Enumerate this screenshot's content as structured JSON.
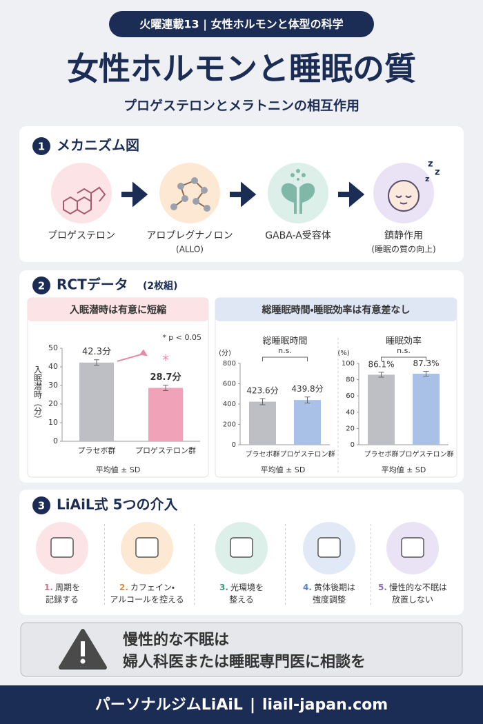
{
  "header": {
    "badge": "火曜連載13 | 女性ホルモンと体型の科学",
    "title": "女性ホルモンと睡眠の質",
    "subtitle": "プロゲステロンとメラトニンの相互作用"
  },
  "mechanism": {
    "number": "1",
    "title": "メカニズム図",
    "steps": [
      {
        "label": "プロゲステロン"
      },
      {
        "label": "アロプレグナノロン",
        "sub": "(ALLO)"
      },
      {
        "label": "GABA-A受容体"
      },
      {
        "label": "鎮静作用",
        "sub": "(睡眠の質の向上)"
      }
    ]
  },
  "rct": {
    "number": "2",
    "title": "RCTデータ",
    "note": "(2枚組)",
    "left_heading": "入眠潜時は有意に短縮",
    "right_heading": "総睡眠時間・睡眠効率は有意差なし"
  },
  "chart_data": [
    {
      "type": "bar",
      "y_label": "入眠潜時（分）",
      "categories": [
        "プラセボ群",
        "プロゲステロン群"
      ],
      "values": [
        42.3,
        28.7
      ],
      "value_labels": [
        "42.3分",
        "28.7分"
      ],
      "errors": [
        1.5,
        1.5
      ],
      "colors": [
        "#bdbfc4",
        "#f0a3b8"
      ],
      "ylim": [
        0,
        50
      ],
      "yticks": [
        0,
        10,
        20,
        30,
        40,
        50
      ],
      "significance": "*",
      "annotation": "* p < 0.05",
      "footnote": "平均値 ± SD"
    },
    {
      "type": "bar",
      "title": "総睡眠時間",
      "unit": "(分)",
      "categories": [
        "プラセボ群",
        "プロゲステロン群"
      ],
      "values": [
        423.6,
        439.8
      ],
      "value_labels": [
        "423.6分",
        "439.8分"
      ],
      "errors": [
        30,
        30
      ],
      "colors": [
        "#bdbfc4",
        "#a9c1e6"
      ],
      "ylim": [
        0,
        800
      ],
      "yticks": [
        0,
        200,
        400,
        600,
        800
      ],
      "significance": "n.s.",
      "footnote": "平均値 ± SD"
    },
    {
      "type": "bar",
      "title": "睡眠効率",
      "unit": "(%)",
      "categories": [
        "プラセボ群",
        "プロゲステロン群"
      ],
      "values": [
        86.1,
        87.3
      ],
      "value_labels": [
        "86.1%",
        "87.3%"
      ],
      "errors": [
        3,
        3
      ],
      "colors": [
        "#bdbfc4",
        "#a9c1e6"
      ],
      "ylim": [
        0,
        100
      ],
      "yticks": [
        0,
        20,
        40,
        60,
        80,
        100
      ],
      "significance": "n.s.",
      "footnote": "平均値 ± SD"
    }
  ],
  "interventions": {
    "number": "3",
    "title": "LiAiL式 5つの介入",
    "items": [
      {
        "num": "1.",
        "lines": [
          "周期を",
          "記録する"
        ]
      },
      {
        "num": "2.",
        "lines": [
          "カフェイン・",
          "アルコールを控える"
        ]
      },
      {
        "num": "3.",
        "lines": [
          "光環境を",
          "整える"
        ]
      },
      {
        "num": "4.",
        "lines": [
          "黄体後期は",
          "強度調整"
        ]
      },
      {
        "num": "5.",
        "lines": [
          "慢性的な不眠は",
          "放置しない"
        ]
      }
    ]
  },
  "warning": {
    "lines": [
      "慢性的な不眠は",
      "婦人科医または睡眠専門医に相談を"
    ]
  },
  "footer": {
    "brand": "パーソナルジムLiAiL",
    "separator": "|",
    "url": "liail-japan.com"
  }
}
